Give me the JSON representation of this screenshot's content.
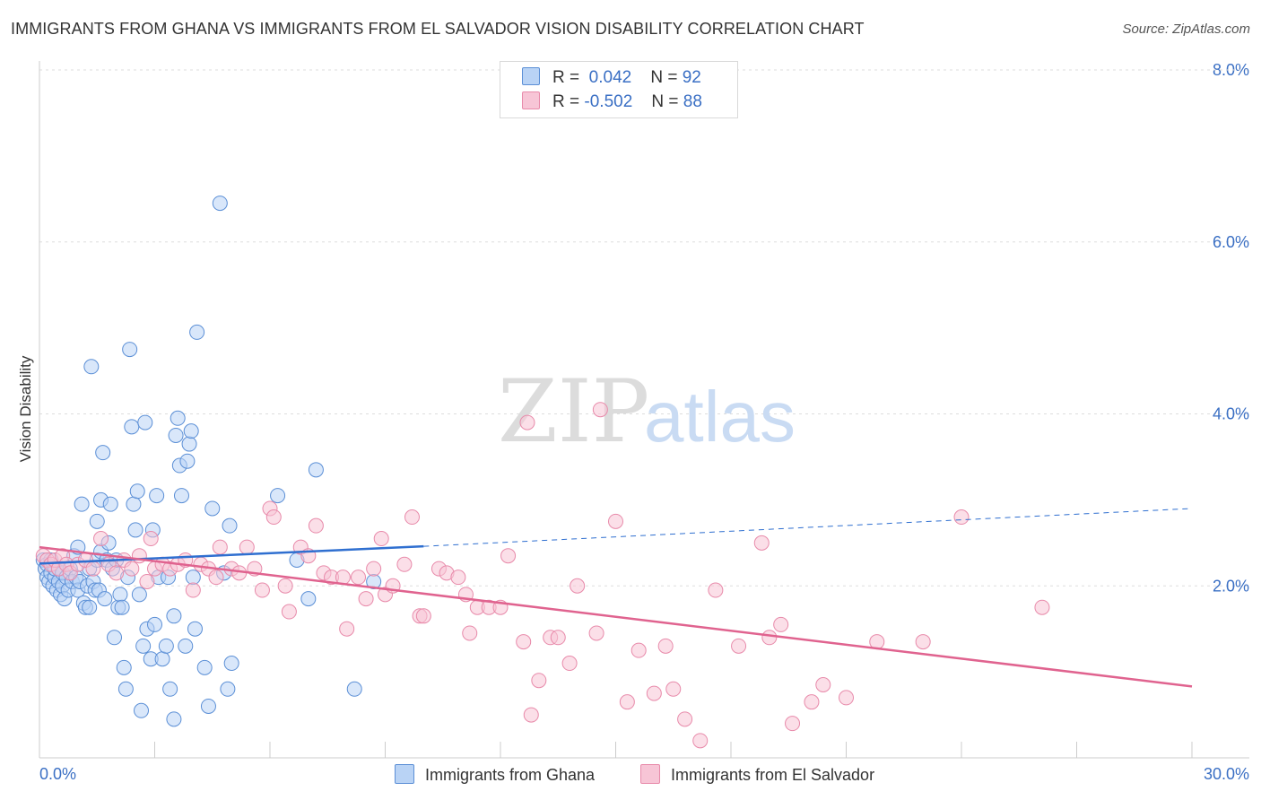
{
  "header": {
    "title": "IMMIGRANTS FROM GHANA VS IMMIGRANTS FROM EL SALVADOR VISION DISABILITY CORRELATION CHART",
    "source": "Source: ZipAtlas.com"
  },
  "watermark": {
    "part1": "ZIP",
    "part2": "atlas"
  },
  "legend": {
    "r_label": "R =",
    "n_label": "N =",
    "ghana": {
      "r": "0.042",
      "n": "92"
    },
    "elsalvador": {
      "r": "-0.502",
      "n": "88"
    }
  },
  "colors": {
    "ghana_fill": "#b9d3f5",
    "ghana_stroke": "#5b8fd6",
    "ghana_line": "#2f6fd0",
    "elsalvador_fill": "#f7c5d6",
    "elsalvador_stroke": "#e88aaa",
    "elsalvador_line": "#e0638f",
    "tick_label": "#3a6fc4",
    "grid": "#dddddd"
  },
  "chart_data": {
    "type": "scatter",
    "title": "IMMIGRANTS FROM GHANA VS IMMIGRANTS FROM EL SALVADOR VISION DISABILITY CORRELATION CHART",
    "xlabel": "",
    "ylabel": "Vision Disability",
    "xlim": [
      0,
      30
    ],
    "ylim": [
      0,
      8
    ],
    "x_tick_labels": [
      "0.0%",
      "30.0%"
    ],
    "y_ticks": [
      2,
      4,
      6,
      8
    ],
    "y_tick_labels": [
      "2.0%",
      "4.0%",
      "6.0%",
      "8.0%"
    ],
    "grid": true,
    "legend_position": "top-center",
    "series": [
      {
        "name": "Immigrants from Ghana",
        "r": 0.042,
        "n": 92,
        "trend": {
          "x0": 0,
          "y0": 2.26,
          "x1": 10,
          "y1": 2.46,
          "dashed_to_x": 30,
          "dashed_to_y": 2.9
        },
        "points": [
          [
            0.1,
            2.3
          ],
          [
            0.15,
            2.2
          ],
          [
            0.2,
            2.1
          ],
          [
            0.2,
            2.25
          ],
          [
            0.25,
            2.05
          ],
          [
            0.3,
            2.15
          ],
          [
            0.3,
            2.3
          ],
          [
            0.35,
            2.0
          ],
          [
            0.4,
            2.1
          ],
          [
            0.4,
            2.2
          ],
          [
            0.45,
            1.95
          ],
          [
            0.5,
            2.05
          ],
          [
            0.5,
            2.2
          ],
          [
            0.55,
            1.9
          ],
          [
            0.6,
            2.0
          ],
          [
            0.6,
            2.15
          ],
          [
            0.65,
            1.85
          ],
          [
            0.7,
            2.1
          ],
          [
            0.75,
            1.95
          ],
          [
            0.8,
            2.2
          ],
          [
            0.85,
            2.05
          ],
          [
            0.9,
            2.35
          ],
          [
            0.95,
            2.1
          ],
          [
            1.0,
            2.45
          ],
          [
            1.0,
            1.95
          ],
          [
            1.05,
            2.05
          ],
          [
            1.1,
            2.95
          ],
          [
            1.15,
            1.8
          ],
          [
            1.2,
            1.75
          ],
          [
            1.25,
            2.0
          ],
          [
            1.3,
            2.2
          ],
          [
            1.3,
            1.75
          ],
          [
            1.35,
            4.55
          ],
          [
            1.4,
            2.05
          ],
          [
            1.45,
            1.95
          ],
          [
            1.5,
            2.3
          ],
          [
            1.5,
            2.75
          ],
          [
            1.55,
            1.95
          ],
          [
            1.6,
            3.0
          ],
          [
            1.6,
            2.4
          ],
          [
            1.65,
            3.55
          ],
          [
            1.7,
            1.85
          ],
          [
            1.75,
            2.3
          ],
          [
            1.8,
            2.5
          ],
          [
            1.85,
            2.95
          ],
          [
            1.9,
            2.2
          ],
          [
            1.95,
            1.4
          ],
          [
            2.0,
            2.3
          ],
          [
            2.05,
            1.75
          ],
          [
            2.1,
            1.9
          ],
          [
            2.15,
            1.75
          ],
          [
            2.2,
            1.05
          ],
          [
            2.25,
            0.8
          ],
          [
            2.3,
            2.1
          ],
          [
            2.35,
            4.75
          ],
          [
            2.4,
            3.85
          ],
          [
            2.45,
            2.95
          ],
          [
            2.5,
            2.65
          ],
          [
            2.55,
            3.1
          ],
          [
            2.6,
            1.9
          ],
          [
            2.65,
            0.55
          ],
          [
            2.7,
            1.3
          ],
          [
            2.75,
            3.9
          ],
          [
            2.8,
            1.5
          ],
          [
            2.9,
            1.15
          ],
          [
            2.95,
            2.65
          ],
          [
            3.0,
            1.55
          ],
          [
            3.05,
            3.05
          ],
          [
            3.1,
            2.1
          ],
          [
            3.2,
            1.15
          ],
          [
            3.3,
            1.3
          ],
          [
            3.35,
            2.1
          ],
          [
            3.4,
            0.8
          ],
          [
            3.5,
            1.65
          ],
          [
            3.5,
            0.45
          ],
          [
            3.55,
            3.75
          ],
          [
            3.6,
            3.95
          ],
          [
            3.65,
            3.4
          ],
          [
            3.7,
            3.05
          ],
          [
            3.8,
            1.3
          ],
          [
            3.85,
            3.45
          ],
          [
            3.9,
            3.65
          ],
          [
            3.95,
            3.8
          ],
          [
            4.0,
            2.1
          ],
          [
            4.05,
            1.5
          ],
          [
            4.1,
            4.95
          ],
          [
            4.3,
            1.05
          ],
          [
            4.4,
            0.6
          ],
          [
            4.5,
            2.9
          ],
          [
            4.7,
            6.45
          ],
          [
            4.8,
            2.15
          ],
          [
            4.9,
            0.8
          ],
          [
            4.95,
            2.7
          ],
          [
            5.0,
            1.1
          ],
          [
            6.2,
            3.05
          ],
          [
            6.7,
            2.3
          ],
          [
            7.2,
            3.35
          ],
          [
            8.2,
            0.8
          ],
          [
            8.7,
            2.05
          ],
          [
            7.0,
            1.85
          ]
        ]
      },
      {
        "name": "Immigrants from El Salvador",
        "r": -0.502,
        "n": 88,
        "trend": {
          "x0": 0,
          "y0": 2.45,
          "x1": 30,
          "y1": 0.83
        },
        "points": [
          [
            0.1,
            2.35
          ],
          [
            0.2,
            2.3
          ],
          [
            0.3,
            2.25
          ],
          [
            0.4,
            2.3
          ],
          [
            0.5,
            2.2
          ],
          [
            0.6,
            2.35
          ],
          [
            0.7,
            2.25
          ],
          [
            0.8,
            2.15
          ],
          [
            1.0,
            2.25
          ],
          [
            1.2,
            2.3
          ],
          [
            1.4,
            2.2
          ],
          [
            1.6,
            2.55
          ],
          [
            1.8,
            2.25
          ],
          [
            2.0,
            2.15
          ],
          [
            2.2,
            2.3
          ],
          [
            2.4,
            2.2
          ],
          [
            2.6,
            2.35
          ],
          [
            2.8,
            2.05
          ],
          [
            2.9,
            2.55
          ],
          [
            3.0,
            2.2
          ],
          [
            3.2,
            2.25
          ],
          [
            3.4,
            2.2
          ],
          [
            3.6,
            2.25
          ],
          [
            3.8,
            2.3
          ],
          [
            4.0,
            1.95
          ],
          [
            4.2,
            2.25
          ],
          [
            4.4,
            2.2
          ],
          [
            4.6,
            2.1
          ],
          [
            4.7,
            2.45
          ],
          [
            5.0,
            2.2
          ],
          [
            5.2,
            2.15
          ],
          [
            5.4,
            2.45
          ],
          [
            5.6,
            2.2
          ],
          [
            5.8,
            1.95
          ],
          [
            6.0,
            2.9
          ],
          [
            6.1,
            2.8
          ],
          [
            6.4,
            2.0
          ],
          [
            6.5,
            1.7
          ],
          [
            6.8,
            2.45
          ],
          [
            7.0,
            2.35
          ],
          [
            7.2,
            2.7
          ],
          [
            7.4,
            2.15
          ],
          [
            7.6,
            2.1
          ],
          [
            7.9,
            2.1
          ],
          [
            8.0,
            1.5
          ],
          [
            8.3,
            2.1
          ],
          [
            8.5,
            1.85
          ],
          [
            8.7,
            2.2
          ],
          [
            8.9,
            2.55
          ],
          [
            9.0,
            1.9
          ],
          [
            9.2,
            2.0
          ],
          [
            9.5,
            2.25
          ],
          [
            9.7,
            2.8
          ],
          [
            9.9,
            1.65
          ],
          [
            10.0,
            1.65
          ],
          [
            10.4,
            2.2
          ],
          [
            10.6,
            2.15
          ],
          [
            10.9,
            2.1
          ],
          [
            11.1,
            1.9
          ],
          [
            11.2,
            1.45
          ],
          [
            11.4,
            1.75
          ],
          [
            11.7,
            1.75
          ],
          [
            12.0,
            1.75
          ],
          [
            12.2,
            2.35
          ],
          [
            12.6,
            1.35
          ],
          [
            12.8,
            0.5
          ],
          [
            13.0,
            0.9
          ],
          [
            13.3,
            1.4
          ],
          [
            13.5,
            1.4
          ],
          [
            13.8,
            1.1
          ],
          [
            14.0,
            2.0
          ],
          [
            14.5,
            1.45
          ],
          [
            14.6,
            4.05
          ],
          [
            15.0,
            2.75
          ],
          [
            15.3,
            0.65
          ],
          [
            15.6,
            1.25
          ],
          [
            16.0,
            0.75
          ],
          [
            16.3,
            1.3
          ],
          [
            16.5,
            0.8
          ],
          [
            16.8,
            0.45
          ],
          [
            17.2,
            0.2
          ],
          [
            17.6,
            1.95
          ],
          [
            18.2,
            1.3
          ],
          [
            18.8,
            2.5
          ],
          [
            19.0,
            1.4
          ],
          [
            19.3,
            1.55
          ],
          [
            19.6,
            0.4
          ],
          [
            20.1,
            0.65
          ],
          [
            20.4,
            0.85
          ],
          [
            21.0,
            0.7
          ],
          [
            21.8,
            1.35
          ],
          [
            23.0,
            1.35
          ],
          [
            24.0,
            2.8
          ],
          [
            26.1,
            1.75
          ],
          [
            12.7,
            3.9
          ]
        ]
      }
    ]
  },
  "bottom_legend": {
    "ghana_label": "Immigrants from Ghana",
    "elsalvador_label": "Immigrants from El Salvador"
  }
}
